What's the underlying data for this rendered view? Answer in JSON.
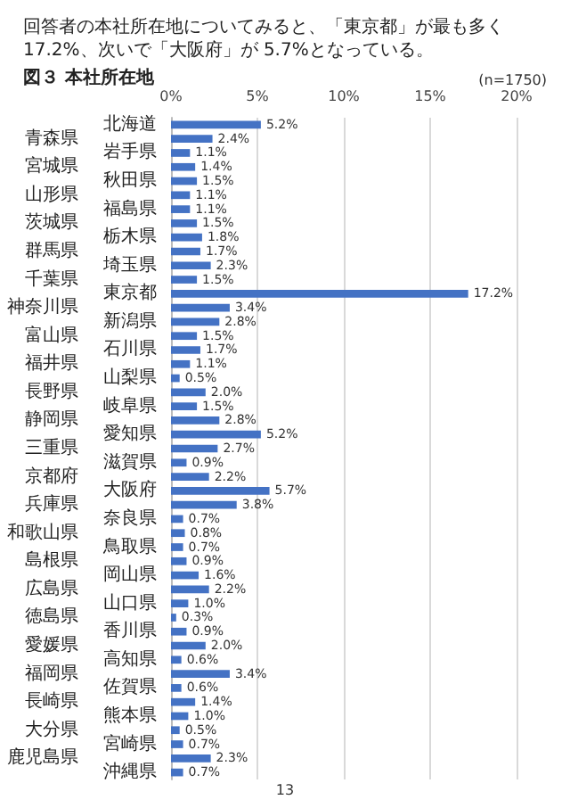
{
  "chart_data": {
    "type": "bar",
    "orientation": "horizontal",
    "title": "図３ 本社所在地",
    "subtitle": "回答者の本社所在地についてみると、「東京都」が最も多く 17.2%、次いで「大阪府」が 5.7%となっている。",
    "annotations": [
      "(n=1750)",
      "13"
    ],
    "categories": [
      "北海道",
      "青森県",
      "岩手県",
      "宮城県",
      "秋田県",
      "山形県",
      "福島県",
      "茨城県",
      "栃木県",
      "群馬県",
      "埼玉県",
      "千葉県",
      "東京都",
      "神奈川県",
      "新潟県",
      "富山県",
      "石川県",
      "福井県",
      "山梨県",
      "長野県",
      "岐阜県",
      "静岡県",
      "愛知県",
      "三重県",
      "滋賀県",
      "京都府",
      "大阪府",
      "兵庫県",
      "奈良県",
      "和歌山県",
      "鳥取県",
      "島根県",
      "岡山県",
      "広島県",
      "山口県",
      "徳島県",
      "香川県",
      "愛媛県",
      "高知県",
      "福岡県",
      "佐賀県",
      "長崎県",
      "熊本県",
      "大分県",
      "宮崎県",
      "鹿児島県",
      "沖縄県"
    ],
    "values": [
      5.2,
      2.4,
      1.1,
      1.4,
      1.5,
      1.1,
      1.1,
      1.5,
      1.8,
      1.7,
      2.3,
      1.5,
      17.2,
      3.4,
      2.8,
      1.5,
      1.7,
      1.1,
      0.5,
      2.0,
      1.5,
      2.8,
      5.2,
      2.7,
      0.9,
      2.2,
      5.7,
      3.8,
      0.7,
      0.8,
      0.7,
      0.9,
      1.6,
      2.2,
      1.0,
      0.3,
      0.9,
      2.0,
      0.6,
      3.4,
      0.6,
      1.4,
      1.0,
      0.5,
      0.7,
      2.3,
      0.7
    ],
    "value_labels": [
      "5.2%",
      "2.4%",
      "1.1%",
      "1.4%",
      "1.5%",
      "1.1%",
      "1.1%",
      "1.5%",
      "1.8%",
      "1.7%",
      "2.3%",
      "1.5%",
      "17.2%",
      "3.4%",
      "2.8%",
      "1.5%",
      "1.7%",
      "1.1%",
      "0.5%",
      "2.0%",
      "1.5%",
      "2.8%",
      "5.2%",
      "2.7%",
      "0.9%",
      "2.2%",
      "5.7%",
      "3.8%",
      "0.7%",
      "0.8%",
      "0.7%",
      "0.9%",
      "1.6%",
      "2.2%",
      "1.0%",
      "0.3%",
      "0.9%",
      "2.0%",
      "0.6%",
      "3.4%",
      "0.6%",
      "1.4%",
      "1.0%",
      "0.5%",
      "0.7%",
      "2.3%",
      "0.7%"
    ],
    "color": "#4472c4",
    "xlim": [
      0,
      20
    ],
    "xticks": [
      {
        "value": 0,
        "label": "0%"
      },
      {
        "value": 5,
        "label": "5%"
      },
      {
        "value": 10,
        "label": "10%"
      },
      {
        "value": 15,
        "label": "15%"
      },
      {
        "value": 20,
        "label": "20%"
      }
    ],
    "grid": "x"
  }
}
